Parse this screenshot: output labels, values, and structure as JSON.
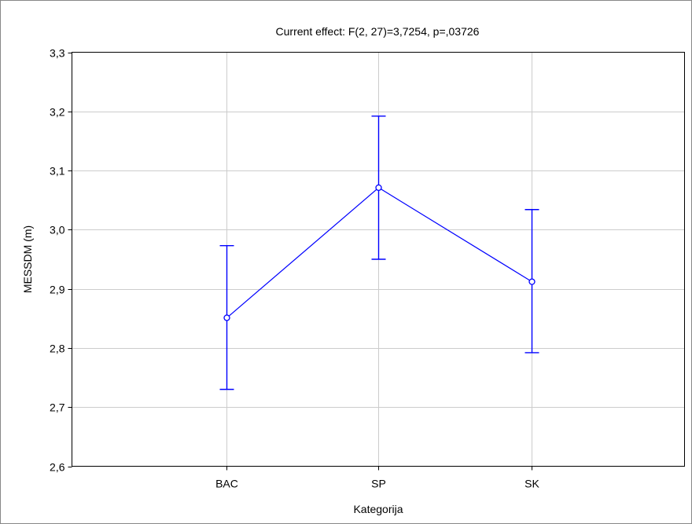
{
  "chart_data": {
    "type": "line",
    "title": "Current effect: F(2, 27)=3,7254, p=,03726",
    "xlabel": "Kategorija",
    "ylabel": "MESSDM (m)",
    "categories": [
      "BAC",
      "SP",
      "SK"
    ],
    "series": [
      {
        "values": [
          2.851,
          3.071,
          2.912
        ],
        "upper": [
          2.973,
          3.192,
          3.034
        ],
        "lower": [
          2.73,
          2.95,
          2.792
        ]
      }
    ],
    "ylim": [
      2.6,
      3.3
    ],
    "yticks": [
      2.6,
      2.7,
      2.8,
      2.9,
      3.0,
      3.1,
      3.2,
      3.3
    ],
    "ytick_labels": [
      "2,6",
      "2,7",
      "2,8",
      "2,9",
      "3,0",
      "3,1",
      "3,2",
      "3,3"
    ],
    "grid": true,
    "color": "#0000ff"
  }
}
